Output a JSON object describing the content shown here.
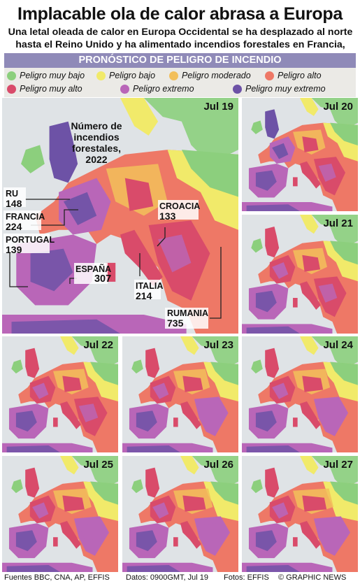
{
  "title": "Implacable ola de calor abrasa a Europa",
  "subtitle": "Una letal oleada de calor en Europa Occidental se ha desplazado al norte hasta el Reino Unido y ha alimentado incendios forestales en Francia, España y Portugal",
  "banner": "PRONÓSTICO DE PELIGRO DE INCENDIO",
  "legend": [
    {
      "label": "Peligro muy bajo",
      "color": "#8ccf7d"
    },
    {
      "label": "Peligro bajo",
      "color": "#f1ea6a"
    },
    {
      "label": "Peligro moderado",
      "color": "#f2bf5b"
    },
    {
      "label": "Peligro alto",
      "color": "#ee7866"
    },
    {
      "label": "Peligro muy alto",
      "color": "#d94b6a"
    },
    {
      "label": "Peligro extremo",
      "color": "#b966b8"
    },
    {
      "label": "Peligro muy extremo",
      "color": "#6d52a6"
    }
  ],
  "panels": [
    "Jul 19",
    "Jul 20",
    "Jul 21",
    "Jul 22",
    "Jul 23",
    "Jul 24",
    "Jul 25",
    "Jul 26",
    "Jul 27"
  ],
  "fires": {
    "heading": "Número de incendios forestales, 2022",
    "countries": [
      {
        "name": "RU",
        "value": "148"
      },
      {
        "name": "FRANCIA",
        "value": "224"
      },
      {
        "name": "PORTUGAL",
        "value": "139"
      },
      {
        "name": "ESPAÑA",
        "value": "307"
      },
      {
        "name": "CROACIA",
        "value": "133"
      },
      {
        "name": "ITALIA",
        "value": "214"
      },
      {
        "name": "RUMANIA",
        "value": "735"
      }
    ]
  },
  "footer": {
    "sources": "Fuentes BBC, CNA, AP, EFFIS",
    "data": "Datos: 0900GMT, Jul 19",
    "photos": "Fotos: EFFIS",
    "brand": "© GRAPHIC NEWS"
  }
}
